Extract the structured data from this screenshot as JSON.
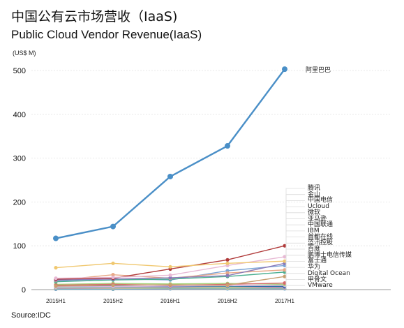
{
  "page": {
    "title": "中国公有云市场营收（IaaS)",
    "subtitle": "Public Cloud Vendor Revenue(IaaS)",
    "unit": "(US$ M)",
    "source": "Source:IDC"
  },
  "chart_data": {
    "type": "line",
    "title": "中国公有云市场营收（IaaS)",
    "subtitle": "Public Cloud Vendor Revenue(IaaS)",
    "ylabel": "(US$ M)",
    "xlabel": "",
    "categories": [
      "2015H1",
      "2015H2",
      "2016H1",
      "2016H2",
      "2017H1"
    ],
    "ylim": [
      0,
      525
    ],
    "yticks": [
      0,
      100,
      200,
      300,
      400,
      500
    ],
    "grid": true,
    "legend": "right, stacked list",
    "series": [
      {
        "name": "阿里巴巴",
        "color": "#4a8fc7",
        "values": [
          117,
          144,
          258,
          328,
          503
        ]
      },
      {
        "name": "腾讯",
        "color": "#f0c870",
        "values": [
          50,
          60,
          52,
          60,
          65
        ]
      },
      {
        "name": "金山",
        "color": "#e7b9d4",
        "values": [
          26,
          28,
          33,
          55,
          75
        ]
      },
      {
        "name": "中国电信",
        "color": "#b03a3a",
        "values": [
          24,
          26,
          47,
          68,
          100
        ]
      },
      {
        "name": "Ucloud",
        "color": "#8a7ab8",
        "values": [
          22,
          24,
          27,
          32,
          60
        ]
      },
      {
        "name": "微软",
        "color": "#e8a887",
        "values": [
          21,
          34,
          26,
          38,
          45
        ]
      },
      {
        "name": "亚马逊",
        "color": "#4caf91",
        "values": [
          18,
          22,
          24,
          30,
          40
        ]
      },
      {
        "name": "中国联通",
        "color": "#7aa4d6",
        "values": [
          20,
          25,
          22,
          43,
          55
        ]
      },
      {
        "name": "IBM",
        "color": "#c8a070",
        "values": [
          8,
          10,
          11,
          10,
          30
        ]
      },
      {
        "name": "首都在线",
        "color": "#d66a6a",
        "values": [
          10,
          12,
          10,
          12,
          15
        ]
      },
      {
        "name": "蓝汛控股",
        "color": "#a7d27a",
        "values": [
          12,
          14,
          13,
          14,
          12
        ]
      },
      {
        "name": "百度",
        "color": "#d7b0e0",
        "values": [
          6,
          7,
          8,
          9,
          10
        ]
      },
      {
        "name": "鹏博士电信传媒",
        "color": "#2c6fa6",
        "values": [
          9,
          8,
          7,
          8,
          7
        ]
      },
      {
        "name": "富士通",
        "color": "#90c5a0",
        "values": [
          4,
          5,
          6,
          6,
          8
        ]
      },
      {
        "name": "华为",
        "color": "#b888c0",
        "values": [
          3,
          4,
          5,
          6,
          5
        ]
      },
      {
        "name": "Digital Ocean",
        "color": "#e0c090",
        "values": [
          3,
          3,
          4,
          4,
          4
        ]
      },
      {
        "name": "甲骨文",
        "color": "#6cc0b0",
        "values": [
          2,
          2,
          3,
          3,
          3
        ]
      },
      {
        "name": "VMware",
        "color": "#6f9ad0",
        "values": [
          1,
          1,
          2,
          2,
          2
        ]
      }
    ]
  }
}
